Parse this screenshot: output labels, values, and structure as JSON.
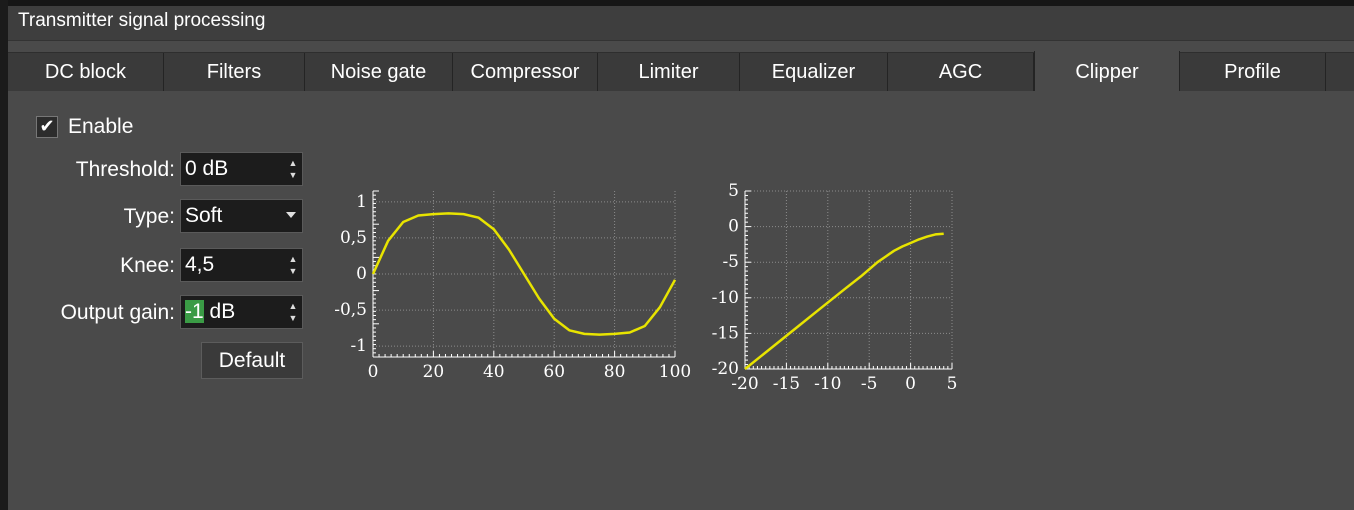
{
  "window": {
    "title": "Transmitter signal processing"
  },
  "tabs": [
    {
      "label": "DC block"
    },
    {
      "label": "Filters"
    },
    {
      "label": "Noise gate"
    },
    {
      "label": "Compressor"
    },
    {
      "label": "Limiter"
    },
    {
      "label": "Equalizer"
    },
    {
      "label": "AGC"
    },
    {
      "label": "Clipper",
      "active": true
    },
    {
      "label": "Profile"
    }
  ],
  "clipper": {
    "enable": {
      "label": "Enable",
      "checked": true,
      "check_glyph": "✔"
    },
    "threshold": {
      "label": "Threshold:",
      "value": "0 dB"
    },
    "type": {
      "label": "Type:",
      "value": "Soft"
    },
    "knee": {
      "label": "Knee:",
      "value": "4,5"
    },
    "output_gain": {
      "label": "Output gain:",
      "value_selected": "-1",
      "value_rest": " dB"
    },
    "default_button": "Default"
  },
  "colors": {
    "curve": "#e8e400",
    "panel": "#4a4a4a",
    "selection": "#3a9b45"
  },
  "chart_data": [
    {
      "type": "line",
      "x_ticks": [
        "0",
        "20",
        "40",
        "60",
        "80",
        "100"
      ],
      "y_ticks": [
        "1",
        "0,5",
        "0",
        "-0,5",
        "-1"
      ],
      "xlim": [
        0,
        100
      ],
      "ylim": [
        -1.15,
        1.15
      ],
      "grid": true,
      "series": [
        {
          "x": [
            0,
            5,
            10,
            15,
            20,
            25,
            30,
            35,
            40,
            45,
            50,
            55,
            60,
            65,
            70,
            75,
            80,
            85,
            90,
            95,
            100
          ],
          "y": [
            0.0,
            0.46,
            0.72,
            0.81,
            0.83,
            0.84,
            0.83,
            0.78,
            0.62,
            0.34,
            0.0,
            -0.34,
            -0.62,
            -0.78,
            -0.83,
            -0.84,
            -0.83,
            -0.81,
            -0.72,
            -0.46,
            -0.08
          ]
        }
      ]
    },
    {
      "type": "line",
      "x_ticks": [
        "-20",
        "-15",
        "-10",
        "-5",
        "0",
        "5"
      ],
      "y_ticks": [
        "5",
        "0",
        "-5",
        "-10",
        "-15",
        "-20"
      ],
      "xlim": [
        -20,
        5
      ],
      "ylim": [
        -20,
        5
      ],
      "grid": true,
      "series": [
        {
          "x": [
            -20,
            -17,
            -14,
            -11,
            -8,
            -6,
            -5,
            -4,
            -3,
            -2,
            -1,
            0,
            1,
            2,
            3,
            4
          ],
          "y": [
            -20,
            -17.2,
            -14.4,
            -11.6,
            -8.8,
            -7.0,
            -6.0,
            -5.0,
            -4.2,
            -3.4,
            -2.8,
            -2.3,
            -1.8,
            -1.4,
            -1.1,
            -1.0
          ]
        }
      ]
    }
  ]
}
